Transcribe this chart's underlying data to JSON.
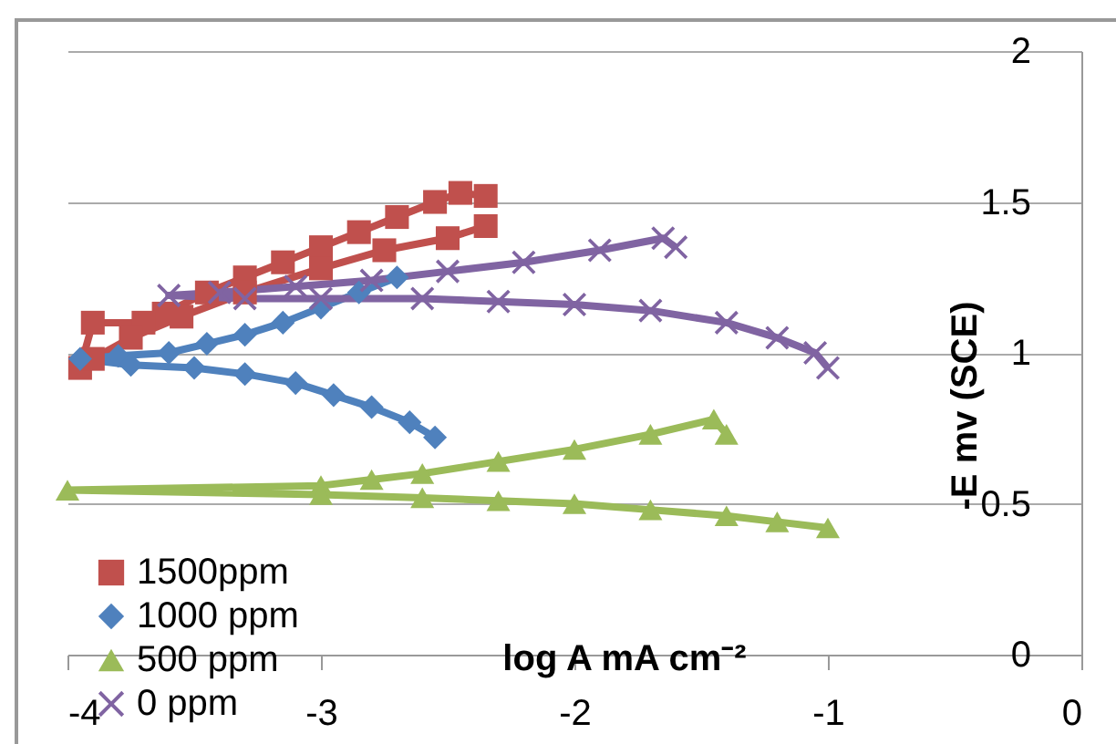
{
  "chart_data": {
    "type": "line",
    "xlabel": "log A mA cm⁻²",
    "ylabel": "-E mv (SCE)",
    "xlim": [
      -4,
      0
    ],
    "xticks": [
      -4,
      -3,
      -2,
      -1,
      0
    ],
    "ylim": [
      0,
      2
    ],
    "yticks": [
      0,
      0.5,
      1,
      1.5,
      2
    ],
    "grid": "y",
    "legend": "bottom left",
    "series": [
      {
        "name": "1500ppm",
        "color": "#c0504d",
        "marker": "square",
        "x": [
          -2.35,
          -2.45,
          -2.55,
          -2.7,
          -2.85,
          -3.0,
          -3.15,
          -3.3,
          -3.45,
          -3.62,
          -3.7,
          -3.9,
          -3.95,
          -3.9,
          -3.75,
          -3.55,
          -3.3,
          -3.0,
          -2.75,
          -2.5,
          -2.35
        ],
        "values": [
          1.52,
          1.53,
          1.5,
          1.45,
          1.4,
          1.35,
          1.3,
          1.25,
          1.2,
          1.13,
          1.1,
          1.1,
          0.95,
          0.98,
          1.05,
          1.12,
          1.2,
          1.28,
          1.34,
          1.38,
          1.42
        ]
      },
      {
        "name": "1000 ppm",
        "color": "#4f81bd",
        "marker": "diamond",
        "x": [
          -2.7,
          -2.85,
          -3.0,
          -3.15,
          -3.3,
          -3.45,
          -3.6,
          -3.8,
          -3.95,
          -3.75,
          -3.5,
          -3.3,
          -3.1,
          -2.95,
          -2.8,
          -2.65,
          -2.55
        ],
        "values": [
          1.25,
          1.2,
          1.15,
          1.1,
          1.06,
          1.03,
          1.0,
          0.99,
          0.98,
          0.96,
          0.95,
          0.93,
          0.9,
          0.86,
          0.82,
          0.77,
          0.72
        ]
      },
      {
        "name": "500 ppm",
        "color": "#9bbb59",
        "marker": "triangle",
        "x": [
          -1.4,
          -1.45,
          -1.7,
          -2.0,
          -2.3,
          -2.6,
          -2.8,
          -3.0,
          -4.0,
          -3.0,
          -2.6,
          -2.3,
          -2.0,
          -1.7,
          -1.4,
          -1.2,
          -1.0
        ],
        "values": [
          0.73,
          0.78,
          0.73,
          0.68,
          0.64,
          0.6,
          0.58,
          0.56,
          0.545,
          0.53,
          0.52,
          0.51,
          0.5,
          0.48,
          0.46,
          0.44,
          0.42
        ]
      },
      {
        "name": "0 ppm",
        "color": "#8064a2",
        "marker": "cross",
        "x": [
          -1.6,
          -1.65,
          -1.9,
          -2.2,
          -2.5,
          -2.8,
          -3.1,
          -3.4,
          -3.6,
          -3.3,
          -3.0,
          -2.6,
          -2.3,
          -2.0,
          -1.7,
          -1.4,
          -1.2,
          -1.05,
          -1.0
        ],
        "values": [
          1.35,
          1.38,
          1.34,
          1.3,
          1.27,
          1.24,
          1.22,
          1.2,
          1.19,
          1.18,
          1.18,
          1.18,
          1.17,
          1.16,
          1.14,
          1.1,
          1.05,
          1.0,
          0.95
        ]
      }
    ]
  }
}
